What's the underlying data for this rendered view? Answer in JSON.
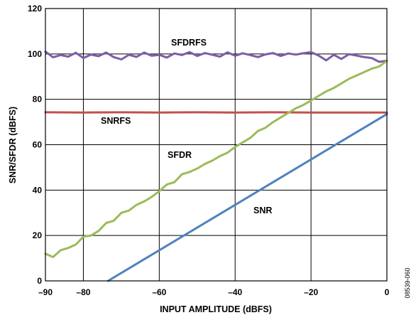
{
  "chart_data": {
    "type": "line",
    "title": "",
    "xlabel": "INPUT AMPLITUDE (dBFS)",
    "ylabel": "SNR/SFDR (dBFS)",
    "xlim": [
      -90,
      0
    ],
    "ylim": [
      0,
      120
    ],
    "x_ticks": [
      -90,
      -80,
      -60,
      -40,
      -20,
      0
    ],
    "x_tick_labels": [
      "–90",
      "–80",
      "–60",
      "–40",
      "–20",
      "0"
    ],
    "y_ticks": [
      0,
      20,
      40,
      60,
      80,
      100,
      120
    ],
    "y_tick_labels": [
      "0",
      "20",
      "40",
      "60",
      "80",
      "100",
      "120"
    ],
    "grid": true,
    "figure_id": "08539-060",
    "series": [
      {
        "name": "SFDRFS",
        "color": "#7b5ea7",
        "x": [
          -90,
          -88,
          -86,
          -84,
          -82,
          -80,
          -78,
          -76,
          -74,
          -72,
          -70,
          -68,
          -66,
          -64,
          -62,
          -60,
          -58,
          -56,
          -54,
          -52,
          -50,
          -48,
          -46,
          -44,
          -42,
          -40,
          -38,
          -36,
          -34,
          -32,
          -30,
          -28,
          -26,
          -24,
          -22,
          -20,
          -18,
          -16,
          -14,
          -12,
          -10,
          -8,
          -6,
          -4,
          -2,
          0
        ],
        "y": [
          101,
          98.5,
          99.5,
          98.8,
          100.5,
          98.2,
          99.7,
          99,
          100.6,
          98.6,
          97.6,
          99.6,
          98.7,
          100.6,
          99.2,
          99.6,
          98.4,
          100.2,
          99.5,
          100.8,
          99.1,
          100.4,
          99.6,
          98.8,
          100.7,
          99.2,
          100.3,
          99.5,
          98.6,
          99.8,
          100.4,
          99.1,
          100.2,
          99.7,
          100.3,
          100.8,
          99.3,
          97.2,
          99.6,
          97.8,
          99.9,
          99.3,
          98.6,
          98.2,
          96.5,
          97
        ]
      },
      {
        "name": "SNRFS",
        "color": "#c0504d",
        "x": [
          -90,
          -80,
          -70,
          -60,
          -50,
          -40,
          -30,
          -20,
          -10,
          0
        ],
        "y": [
          74.3,
          74.2,
          74.3,
          74.2,
          74.3,
          74.2,
          74.3,
          74.2,
          74.2,
          74.2
        ]
      },
      {
        "name": "SFDR",
        "color": "#9bbb59",
        "x": [
          -90,
          -88,
          -86,
          -84,
          -82,
          -80,
          -78,
          -76,
          -74,
          -72,
          -70,
          -68,
          -66,
          -64,
          -62,
          -60,
          -58,
          -56,
          -54,
          -52,
          -50,
          -48,
          -46,
          -44,
          -42,
          -40,
          -38,
          -36,
          -34,
          -32,
          -30,
          -28,
          -26,
          -24,
          -22,
          -20,
          -18,
          -16,
          -14,
          -12,
          -10,
          -8,
          -6,
          -4,
          -2,
          0
        ],
        "y": [
          12,
          10.5,
          13.5,
          14.5,
          16,
          19.5,
          20,
          22,
          25.5,
          26.5,
          30,
          31,
          33.5,
          35,
          37,
          39.5,
          42.5,
          43.5,
          47,
          48,
          49.5,
          51.5,
          53,
          55,
          56.5,
          59,
          61,
          63,
          66,
          67.5,
          70,
          72,
          74,
          76,
          77.5,
          79.5,
          81.5,
          83.5,
          85,
          87,
          89,
          90.5,
          92,
          93.5,
          94.5,
          97
        ]
      },
      {
        "name": "SNR",
        "color": "#4f81bd",
        "x": [
          -73.5,
          0
        ],
        "y": [
          0,
          73.5
        ]
      }
    ],
    "annotations": [
      {
        "text": "SFDRFS",
        "series": "SFDRFS"
      },
      {
        "text": "SNRFS",
        "series": "SNRFS"
      },
      {
        "text": "SFDR",
        "series": "SFDR"
      },
      {
        "text": "SNR",
        "series": "SNR"
      }
    ]
  }
}
